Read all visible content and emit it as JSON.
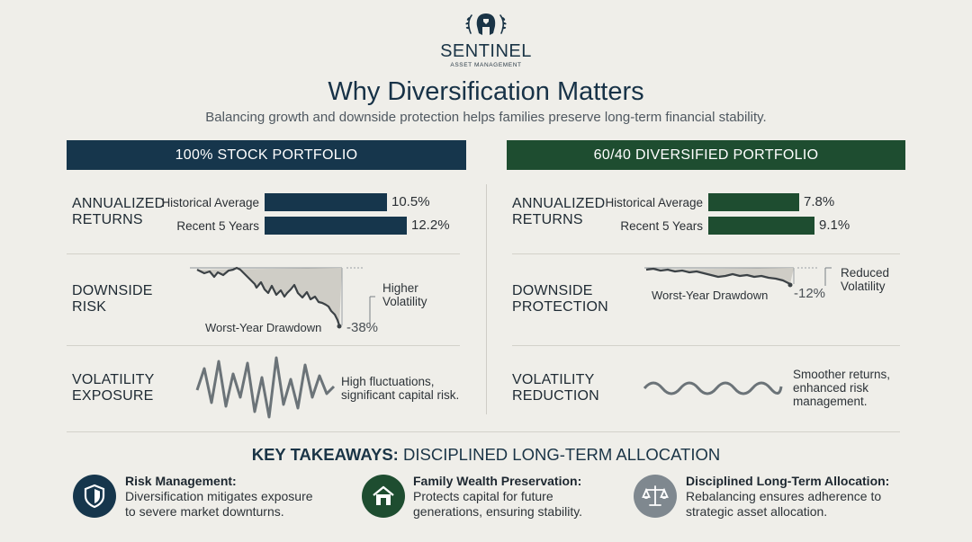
{
  "brand": {
    "name": "SENTINEL",
    "sub": "ASSET MANAGEMENT",
    "logo_icon": "helmet-laurel-icon"
  },
  "title": "Why Diversification Matters",
  "subtitle": "Balancing growth and downside protection helps families preserve long-term financial stability.",
  "left": {
    "header": "100% STOCK PORTFOLIO",
    "header_color": "#16364c",
    "returns": {
      "label_line1": "ANNUALIZED",
      "label_line2": "RETURNS",
      "bars": [
        {
          "label": "Historical Average",
          "value": 10.5,
          "display": "10.5%"
        },
        {
          "label": "Recent 5 Years",
          "value": 12.2,
          "display": "12.2%"
        }
      ]
    },
    "risk": {
      "label_line1": "DOWNSIDE",
      "label_line2": "RISK",
      "caption": "Worst-Year Drawdown",
      "drawdown": "-38%",
      "note_line1": "Higher",
      "note_line2": "Volatility"
    },
    "volatility": {
      "label_line1": "VOLATILITY",
      "label_line2": "EXPOSURE",
      "note_line1": "High fluctuations,",
      "note_line2": "significant capital risk."
    }
  },
  "right": {
    "header": "60/40 DIVERSIFIED PORTFOLIO",
    "header_color": "#1e4d30",
    "returns": {
      "label_line1": "ANNUALIZED",
      "label_line2": "RETURNS",
      "bars": [
        {
          "label": "Historical Average",
          "value": 7.8,
          "display": "7.8%"
        },
        {
          "label": "Recent 5 Years",
          "value": 9.1,
          "display": "9.1%"
        }
      ]
    },
    "risk": {
      "label_line1": "DOWNSIDE",
      "label_line2": "PROTECTION",
      "caption": "Worst-Year Drawdown",
      "drawdown": "-12%",
      "note_line1": "Reduced",
      "note_line2": "Volatility"
    },
    "volatility": {
      "label_line1": "VOLATILITY",
      "label_line2": "REDUCTION",
      "note_line1": "Smoother returns,",
      "note_line2": "enhanced risk",
      "note_line3": "management."
    }
  },
  "takeaways": {
    "heading_bold": "KEY TAKEAWAYS:",
    "heading_rest": " DISCIPLINED LONG-TERM ALLOCATION",
    "items": [
      {
        "icon": "shield-icon",
        "color": "#16364c",
        "title": "Risk Management:",
        "line1": "Diversification mitigates exposure",
        "line2": "to severe market downturns."
      },
      {
        "icon": "house-icon",
        "color": "#1e4d30",
        "title": "Family Wealth Preservation:",
        "line1": "Protects capital for future",
        "line2": "generations, ensuring stability."
      },
      {
        "icon": "scales-icon",
        "color": "#7f888f",
        "title": "Disciplined Long-Term Allocation:",
        "line1": "Rebalancing ensures adherence to",
        "line2": "strategic asset allocation."
      }
    ]
  }
}
